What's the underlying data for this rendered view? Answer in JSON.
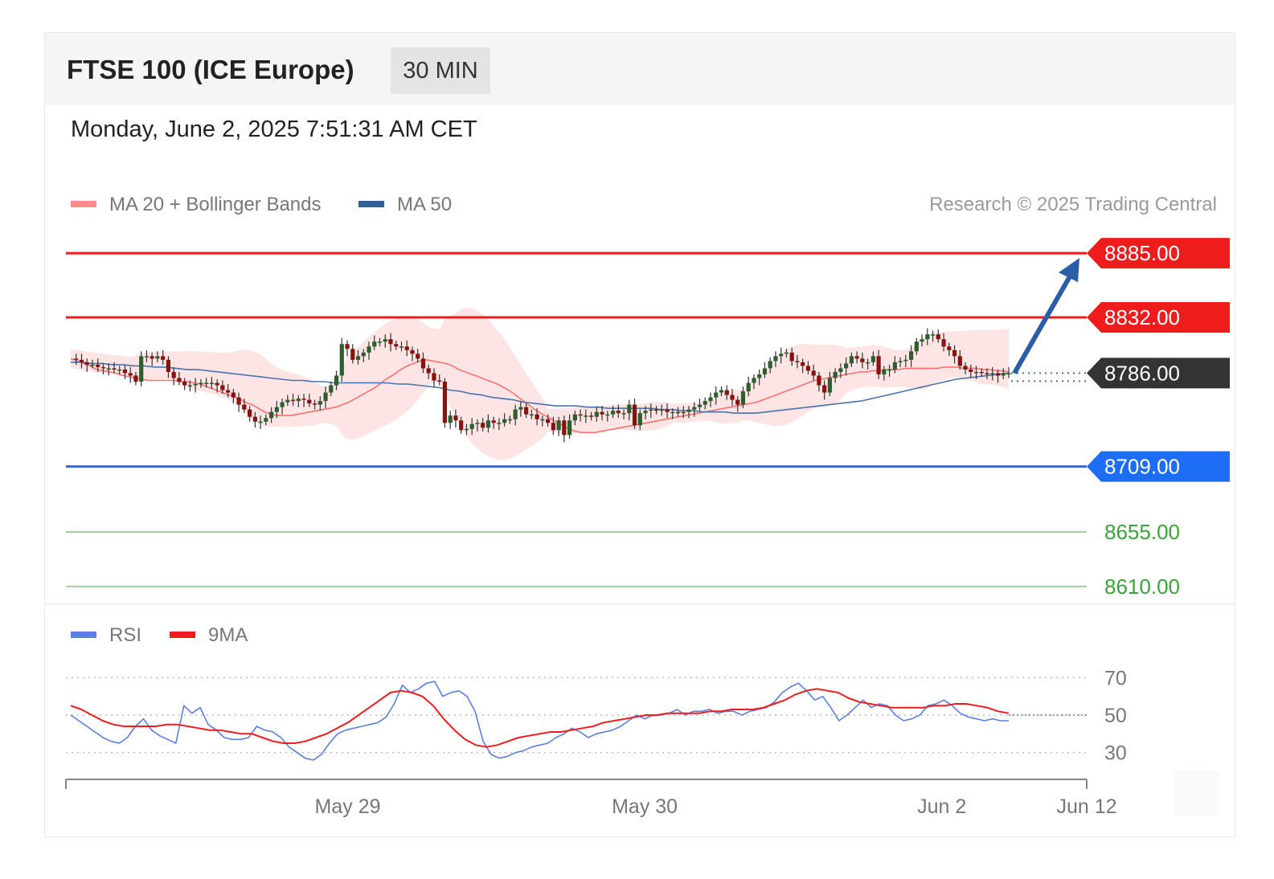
{
  "header": {
    "instrument": "FTSE 100 (ICE Europe)",
    "timeframe": "30 MIN",
    "timestamp": "Monday, June 2, 2025 7:51:31 AM CET"
  },
  "legend": {
    "ma20_label": "MA 20 + Bollinger Bands",
    "ma20_color": "#ff8a8a",
    "ma50_label": "MA 50",
    "ma50_color": "#2f5f9e",
    "copyright": "Research © 2025 Trading Central"
  },
  "rsi_legend": {
    "rsi_label": "RSI",
    "rsi_color": "#5b7fe0",
    "ma9_label": "9MA",
    "ma9_color": "#ee1c1c"
  },
  "chart_data": [
    {
      "type": "line",
      "title": "",
      "ylim": [
        8600,
        8895
      ],
      "last_price": 8786,
      "levels": [
        {
          "label": "8885.00",
          "value": 8885,
          "kind": "resistance",
          "color": "#ee1c1c"
        },
        {
          "label": "8832.00",
          "value": 8832,
          "kind": "resistance",
          "color": "#ee1c1c"
        },
        {
          "label": "8786.00",
          "value": 8786,
          "kind": "last",
          "color": "#333333"
        },
        {
          "label": "8709.00",
          "value": 8709,
          "kind": "pivot",
          "color": "#1e6ef5"
        },
        {
          "label": "8655.00",
          "value": 8655,
          "kind": "support",
          "color": "#3aa33a"
        },
        {
          "label": "8610.00",
          "value": 8610,
          "kind": "support",
          "color": "#3aa33a"
        }
      ],
      "target_arrow": {
        "from": 8786,
        "to": 8885
      },
      "x_ticks": [
        "May 29",
        "May 30",
        "Jun 2",
        "Jun 12"
      ],
      "x_tick_positions": [
        0.276,
        0.567,
        0.858,
        1.0
      ],
      "series": [
        {
          "name": "Price",
          "values": [
            8798,
            8797,
            8795,
            8793,
            8793,
            8791,
            8790,
            8790,
            8789,
            8789,
            8786,
            8784,
            8779,
            8800,
            8800,
            8798,
            8800,
            8797,
            8787,
            8782,
            8779,
            8776,
            8776,
            8777,
            8778,
            8778,
            8778,
            8776,
            8772,
            8770,
            8766,
            8760,
            8756,
            8750,
            8746,
            8746,
            8749,
            8754,
            8758,
            8762,
            8764,
            8763,
            8765,
            8764,
            8761,
            8760,
            8763,
            8770,
            8776,
            8784,
            8810,
            8806,
            8797,
            8800,
            8803,
            8808,
            8812,
            8812,
            8814,
            8810,
            8808,
            8808,
            8805,
            8802,
            8798,
            8790,
            8786,
            8780,
            8779,
            8745,
            8751,
            8747,
            8739,
            8740,
            8744,
            8745,
            8741,
            8747,
            8745,
            8745,
            8748,
            8748,
            8756,
            8758,
            8752,
            8752,
            8748,
            8748,
            8745,
            8739,
            8747,
            8735,
            8747,
            8752,
            8751,
            8751,
            8750,
            8754,
            8752,
            8752,
            8755,
            8753,
            8753,
            8760,
            8743,
            8753,
            8755,
            8756,
            8755,
            8756,
            8754,
            8754,
            8753,
            8754,
            8756,
            8758,
            8760,
            8763,
            8766,
            8770,
            8772,
            8768,
            8764,
            8760,
            8771,
            8778,
            8782,
            8785,
            8790,
            8796,
            8800,
            8802,
            8803,
            8796,
            8795,
            8792,
            8788,
            8784,
            8776,
            8770,
            8782,
            8787,
            8790,
            8794,
            8800,
            8798,
            8795,
            8795,
            8800,
            8785,
            8789,
            8789,
            8795,
            8796,
            8797,
            8804,
            8812,
            8814,
            8818,
            8818,
            8814,
            8808,
            8805,
            8800,
            8792,
            8789,
            8787,
            8787,
            8786,
            8785,
            8786,
            8784,
            8786,
            8786
          ]
        },
        {
          "name": "MA 20",
          "values": [
            8798,
            8796,
            8794,
            8792,
            8789,
            8788,
            8787,
            8786,
            8784,
            8783,
            8782,
            8781,
            8780,
            8780,
            8780,
            8780,
            8780,
            8779,
            8779,
            8778,
            8777,
            8775,
            8773,
            8771,
            8769,
            8767,
            8765,
            8762,
            8760,
            8757,
            8754,
            8752,
            8751,
            8751,
            8751,
            8752,
            8753,
            8754,
            8755,
            8756,
            8757,
            8758,
            8760,
            8762,
            8765,
            8768,
            8771,
            8774,
            8778,
            8782,
            8785,
            8789,
            8792,
            8794,
            8796,
            8797,
            8796,
            8795,
            8794,
            8792,
            8789,
            8787,
            8785,
            8783,
            8781,
            8779,
            8777,
            8774,
            8771,
            8767,
            8763,
            8759,
            8755,
            8752,
            8749,
            8746,
            8743,
            8740,
            8738,
            8737,
            8737,
            8737,
            8738,
            8739,
            8740,
            8741,
            8742,
            8743,
            8744,
            8745,
            8746,
            8747,
            8748,
            8749,
            8750,
            8751,
            8752,
            8753,
            8754,
            8755,
            8756,
            8757,
            8758,
            8759,
            8760,
            8761,
            8762,
            8764,
            8766,
            8768,
            8770,
            8772,
            8774,
            8776,
            8778,
            8780,
            8781,
            8782,
            8783,
            8784,
            8785,
            8786,
            8787,
            8787,
            8788,
            8788,
            8789,
            8789,
            8789,
            8790,
            8790,
            8790,
            8790,
            8790,
            8790,
            8791,
            8791,
            8791,
            8790,
            8790,
            8790,
            8789,
            8789,
            8788,
            8788,
            8787
          ]
        },
        {
          "name": "MA 50",
          "values": [
            8795,
            8795,
            8794,
            8794,
            8793,
            8793,
            8792,
            8792,
            8791,
            8791,
            8790,
            8789,
            8789,
            8788,
            8787,
            8786,
            8785,
            8784,
            8783,
            8782,
            8781,
            8780,
            8780,
            8779,
            8779,
            8778,
            8778,
            8778,
            8778,
            8778,
            8778,
            8777,
            8777,
            8776,
            8775,
            8774,
            8772,
            8771,
            8769,
            8768,
            8766,
            8765,
            8764,
            8762,
            8761,
            8760,
            8759,
            8759,
            8759,
            8758,
            8758,
            8757,
            8757,
            8757,
            8757,
            8757,
            8756,
            8756,
            8755,
            8755,
            8754,
            8754,
            8754,
            8753,
            8753,
            8753,
            8754,
            8755,
            8756,
            8757,
            8758,
            8759,
            8760,
            8761,
            8762,
            8763,
            8765,
            8767,
            8769,
            8771,
            8773,
            8775,
            8777,
            8779,
            8781,
            8782,
            8783,
            8784,
            8785,
            8786
          ]
        }
      ]
    },
    {
      "type": "line",
      "ylim": [
        20,
        80
      ],
      "y_ticks": [
        70,
        50,
        30
      ],
      "series": [
        {
          "name": "RSI",
          "values": [
            50,
            47,
            44,
            41,
            38,
            36,
            35,
            38,
            44,
            48,
            42,
            39,
            37,
            35,
            55,
            51,
            54,
            45,
            42,
            38,
            37,
            37,
            38,
            44,
            42,
            41,
            38,
            33,
            30,
            27,
            26,
            29,
            35,
            40,
            42,
            43,
            44,
            45,
            46,
            49,
            56,
            66,
            62,
            64,
            67,
            68,
            60,
            62,
            63,
            60,
            52,
            36,
            29,
            27,
            28,
            30,
            31,
            33,
            34,
            35,
            38,
            40,
            43,
            41,
            38,
            40,
            41,
            42,
            44,
            47,
            50,
            48,
            50,
            50,
            51,
            53,
            50,
            52,
            52,
            53,
            51,
            52,
            52,
            50,
            52,
            53,
            54,
            57,
            62,
            65,
            67,
            63,
            58,
            60,
            54,
            47,
            50,
            54,
            58,
            54,
            56,
            55,
            50,
            47,
            48,
            50,
            55,
            56,
            58,
            55,
            51,
            49,
            48,
            47,
            48,
            47,
            47
          ]
        },
        {
          "name": "9MA",
          "values": [
            55,
            53,
            50,
            47,
            45,
            44,
            44,
            44,
            44,
            45,
            45,
            44,
            43,
            42,
            42,
            41,
            40,
            40,
            38,
            36,
            35,
            35,
            36,
            38,
            40,
            43,
            46,
            50,
            54,
            58,
            62,
            63,
            62,
            60,
            55,
            48,
            42,
            37,
            34,
            33,
            34,
            36,
            38,
            39,
            40,
            41,
            41,
            42,
            43,
            44,
            46,
            47,
            48,
            49,
            50,
            50,
            51,
            51,
            51,
            51,
            52,
            52,
            53,
            53,
            53,
            54,
            56,
            58,
            61,
            63,
            64,
            63,
            62,
            59,
            57,
            56,
            55,
            54,
            54,
            54,
            54,
            55,
            55,
            56,
            56,
            55,
            54,
            52,
            51
          ]
        }
      ]
    }
  ]
}
